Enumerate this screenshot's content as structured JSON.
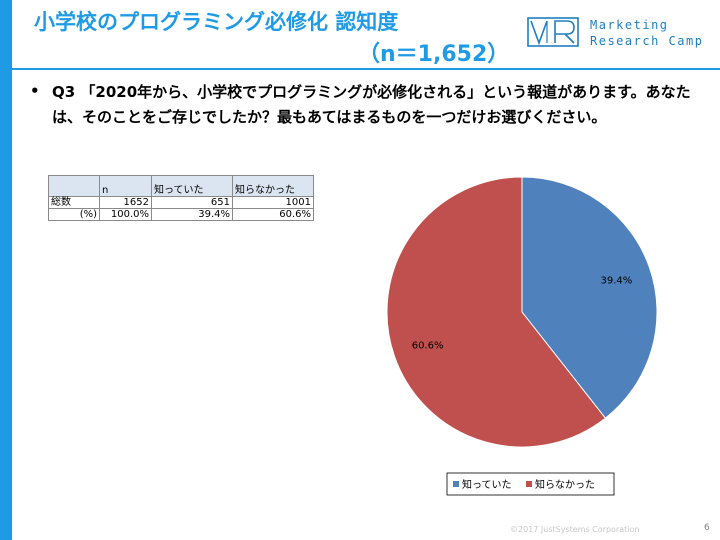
{
  "header": {
    "title_line1": "小学校のプログラミング必修化 認知度",
    "title_line2": "（n＝1,652）",
    "logo_line1": "Marketing",
    "logo_line2": "Research Camp"
  },
  "question": {
    "bullet": "•",
    "text": "Q3 「2020年から、小学校でプログラミングが必修化される」という報道があります。あなたは、そのことをご存じでしたか？最もあてはまるものを一つだけお選びください。"
  },
  "table": {
    "headers": [
      "",
      "n",
      "知っていた",
      "知らなかった"
    ],
    "rows": [
      [
        "総数",
        "1652",
        "651",
        "1001"
      ],
      [
        "(%)",
        "100.0%",
        "39.4%",
        "60.6%"
      ]
    ]
  },
  "chart_data": {
    "type": "pie",
    "categories": [
      "知っていた",
      "知らなかった"
    ],
    "values": [
      39.4,
      60.6
    ],
    "data_labels": [
      "39.4%",
      "60.6%"
    ],
    "colors": [
      "#4f81bd",
      "#c0504d"
    ],
    "legend_position": "bottom",
    "title": ""
  },
  "footer": {
    "copyright": "©2017 JustSystems Corporation",
    "page": "6"
  }
}
